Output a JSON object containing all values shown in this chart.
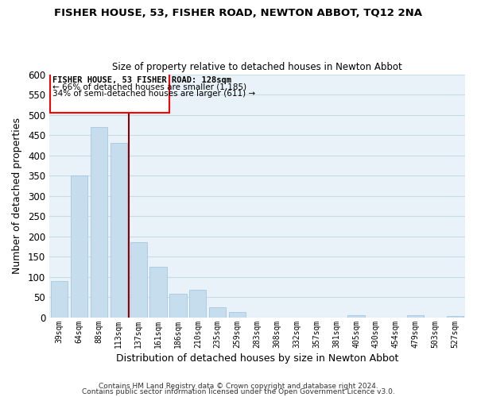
{
  "title": "FISHER HOUSE, 53, FISHER ROAD, NEWTON ABBOT, TQ12 2NA",
  "subtitle": "Size of property relative to detached houses in Newton Abbot",
  "xlabel": "Distribution of detached houses by size in Newton Abbot",
  "ylabel": "Number of detached properties",
  "bar_color": "#c5dded",
  "bar_edge_color": "#a8c8e0",
  "vline_color": "#8b0000",
  "vline_x_idx": 4,
  "categories": [
    "39sqm",
    "64sqm",
    "88sqm",
    "113sqm",
    "137sqm",
    "161sqm",
    "186sqm",
    "210sqm",
    "235sqm",
    "259sqm",
    "283sqm",
    "308sqm",
    "332sqm",
    "357sqm",
    "381sqm",
    "405sqm",
    "430sqm",
    "454sqm",
    "479sqm",
    "503sqm",
    "527sqm"
  ],
  "values": [
    90,
    350,
    470,
    430,
    185,
    125,
    57,
    68,
    25,
    13,
    0,
    0,
    0,
    0,
    0,
    4,
    0,
    0,
    5,
    0,
    3
  ],
  "ylim": [
    0,
    600
  ],
  "yticks": [
    0,
    50,
    100,
    150,
    200,
    250,
    300,
    350,
    400,
    450,
    500,
    550,
    600
  ],
  "annotation_title": "FISHER HOUSE, 53 FISHER ROAD: 128sqm",
  "annotation_line1": "← 66% of detached houses are smaller (1,185)",
  "annotation_line2": "34% of semi-detached houses are larger (611) →",
  "footnote1": "Contains HM Land Registry data © Crown copyright and database right 2024.",
  "footnote2": "Contains public sector information licensed under the Open Government Licence v3.0.",
  "grid_color": "#c8dce8",
  "background_color": "#e8f2f8"
}
